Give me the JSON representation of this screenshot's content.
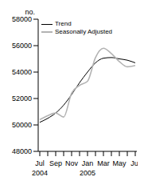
{
  "chart_data": {
    "type": "line",
    "y_label": "no.",
    "categories": [
      "Jul\n2004",
      null,
      "Sep",
      null,
      "Nov",
      null,
      "Jan\n2005",
      null,
      "Mar",
      null,
      "May",
      null,
      "Jul"
    ],
    "series": [
      {
        "name": "Trend",
        "color": "#000000",
        "values": [
          50200,
          50500,
          50900,
          51500,
          52300,
          53200,
          54000,
          54700,
          55050,
          55100,
          55000,
          54900,
          54700
        ]
      },
      {
        "name": "Seasonally Adjusted",
        "color": "#b3b3b3",
        "values": [
          50400,
          50700,
          50900,
          50600,
          52400,
          53000,
          53300,
          55100,
          55800,
          55400,
          54800,
          54400,
          54500
        ]
      }
    ],
    "ylim": [
      48000,
      58000
    ],
    "yticks": [
      48000,
      50000,
      52000,
      54000,
      56000,
      58000
    ],
    "legend": "top-left",
    "grid": false
  }
}
